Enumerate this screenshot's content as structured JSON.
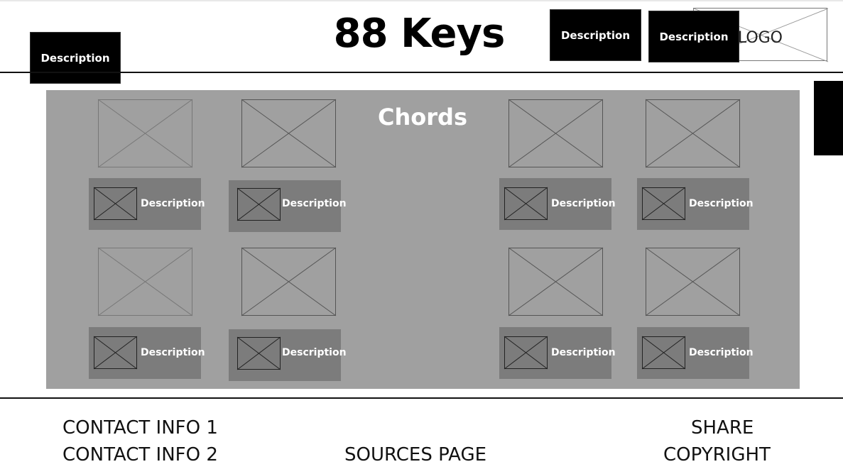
{
  "header": {
    "title": "88 Keys",
    "left_button_label": "Description",
    "right_button_1_label": "Description",
    "right_button_2_label": "Description",
    "logo_text": "LOGO"
  },
  "main": {
    "heading": "Chords",
    "cards": [
      {
        "label": "Description"
      },
      {
        "label": "Description"
      },
      {
        "label": "Description"
      },
      {
        "label": "Description"
      },
      {
        "label": "Description"
      },
      {
        "label": "Description"
      },
      {
        "label": "Description"
      },
      {
        "label": "Description"
      }
    ]
  },
  "footer": {
    "contact_1": "CONTACT INFO 1",
    "contact_2": "CONTACT INFO 2",
    "sources": "SOURCES PAGE",
    "share": "SHARE",
    "copyright": "COPYRIGHT"
  }
}
